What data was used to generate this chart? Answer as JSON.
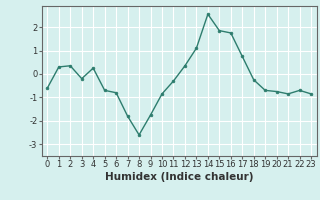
{
  "x": [
    0,
    1,
    2,
    3,
    4,
    5,
    6,
    7,
    8,
    9,
    10,
    11,
    12,
    13,
    14,
    15,
    16,
    17,
    18,
    19,
    20,
    21,
    22,
    23
  ],
  "y": [
    -0.6,
    0.3,
    0.35,
    -0.2,
    0.25,
    -0.7,
    -0.8,
    -1.8,
    -2.6,
    -1.75,
    -0.85,
    -0.3,
    0.35,
    1.1,
    2.55,
    1.85,
    1.75,
    0.75,
    -0.25,
    -0.7,
    -0.75,
    -0.85,
    -0.7,
    -0.85
  ],
  "line_color": "#2e7d6e",
  "marker": "o",
  "markersize": 2.0,
  "linewidth": 1.0,
  "xlabel": "Humidex (Indice chaleur)",
  "xlim": [
    -0.5,
    23.5
  ],
  "ylim": [
    -3.5,
    2.9
  ],
  "yticks": [
    -3,
    -2,
    -1,
    0,
    1,
    2
  ],
  "xticks": [
    0,
    1,
    2,
    3,
    4,
    5,
    6,
    7,
    8,
    9,
    10,
    11,
    12,
    13,
    14,
    15,
    16,
    17,
    18,
    19,
    20,
    21,
    22,
    23
  ],
  "bg_color": "#d6f0ee",
  "grid_color": "#ffffff",
  "tick_labelsize": 6,
  "xlabel_fontsize": 7.5,
  "xlabel_fontweight": "bold",
  "spine_color": "#666666"
}
